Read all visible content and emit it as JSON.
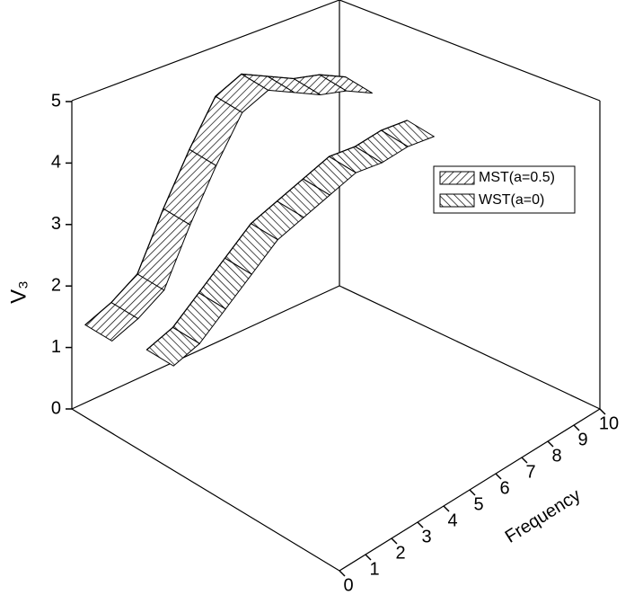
{
  "chart_data": {
    "type": "ribbon3d",
    "zlabel": "V₃",
    "xlabel": "Frequency",
    "x": [
      0,
      1,
      2,
      3,
      4,
      5,
      6,
      7,
      8,
      9,
      10
    ],
    "xlim": [
      0,
      10
    ],
    "xticks": [
      0,
      1,
      2,
      3,
      4,
      5,
      6,
      7,
      8,
      9,
      10
    ],
    "zlim": [
      0,
      5
    ],
    "zticks": [
      0,
      1,
      2,
      3,
      4,
      5
    ],
    "series": [
      {
        "name": "MST(a=0.5)",
        "color": "#000000",
        "hatch": "forward",
        "values": [
          1.5,
          1.6,
          1.8,
          2.6,
          3.3,
          3.9,
          4.0,
          3.7,
          3.4,
          3.2,
          2.9
        ]
      },
      {
        "name": "WST(a=0)",
        "color": "#000000",
        "hatch": "backward",
        "values": [
          1.7,
          1.8,
          2.1,
          2.4,
          2.7,
          2.8,
          2.9,
          3.0,
          2.9,
          2.9,
          2.8
        ]
      }
    ],
    "legend": "upper right"
  }
}
